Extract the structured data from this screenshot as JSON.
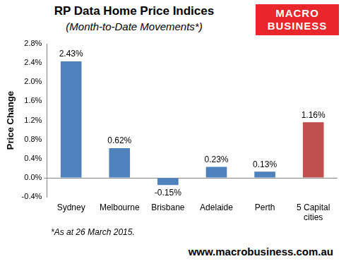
{
  "chart_data": {
    "type": "bar",
    "title": "RP Data Home Price Indices",
    "subtitle": "(Month-to-Date Movements*)",
    "y_label": "Price Change",
    "categories": [
      "Sydney",
      "Melbourne",
      "Brisbane",
      "Adelaide",
      "Perth",
      "5 Capital cities"
    ],
    "values": [
      2.43,
      0.62,
      -0.15,
      0.23,
      0.13,
      1.16
    ],
    "value_labels": [
      "2.43%",
      "0.62%",
      "-0.15%",
      "0.23%",
      "0.13%",
      "1.16%"
    ],
    "colors": [
      "#4f81bd",
      "#4f81bd",
      "#4f81bd",
      "#4f81bd",
      "#4f81bd",
      "#c0504d"
    ],
    "ylim": [
      -0.4,
      2.8
    ],
    "yticks": [
      {
        "value": -0.4,
        "label": "-0.4%"
      },
      {
        "value": 0,
        "label": "0.0%"
      },
      {
        "value": 0.4,
        "label": "0.4%"
      },
      {
        "value": 0.8,
        "label": "0.8%"
      },
      {
        "value": 1.2,
        "label": "1.2%"
      },
      {
        "value": 1.6,
        "label": "1.6%"
      },
      {
        "value": 2.0,
        "label": "2.0%"
      },
      {
        "value": 2.4,
        "label": "2.4%"
      },
      {
        "value": 2.8,
        "label": "2.8%"
      }
    ],
    "grid": false,
    "data_labels": true,
    "annotations": [
      "*As at 26 March 2015.",
      "www.macrobusiness.com.au"
    ],
    "logo_text": [
      "MACRO",
      "BUSINESS"
    ]
  }
}
